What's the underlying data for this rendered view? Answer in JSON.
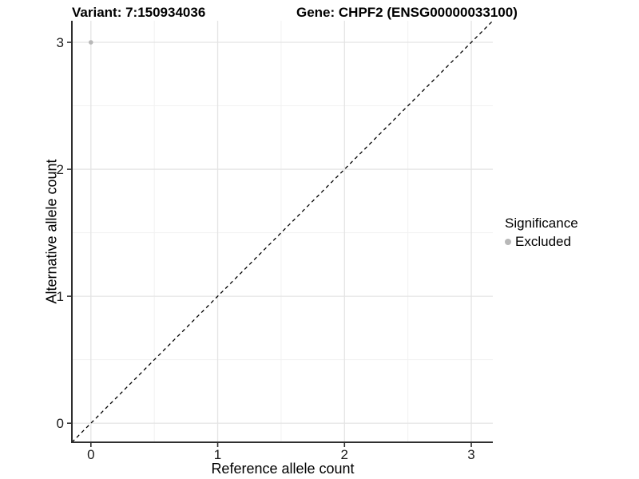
{
  "title": {
    "variant": "Variant: 7:150934036",
    "gene": "Gene: CHPF2 (ENSG00000033100)"
  },
  "axes": {
    "x_label": "Reference allele count",
    "y_label": "Alternative allele count"
  },
  "legend": {
    "title": "Significance",
    "items": [
      {
        "label": "Excluded",
        "color": "#b8b8b8",
        "marker": "circle"
      }
    ]
  },
  "chart_data": {
    "type": "scatter",
    "title": "Variant: 7:150934036   |   Gene: CHPF2 (ENSG00000033100)",
    "xlabel": "Reference allele count",
    "ylabel": "Alternative allele count",
    "xlim": [
      -0.15,
      3.17
    ],
    "ylim": [
      -0.15,
      3.17
    ],
    "x_ticks": [
      0,
      1,
      2,
      3
    ],
    "y_ticks": [
      0,
      1,
      2,
      3
    ],
    "x_minor_ticks": [
      0.5,
      1.5,
      2.5
    ],
    "y_minor_ticks": [
      0.5,
      1.5,
      2.5
    ],
    "grid": true,
    "legend_position": "right",
    "series": [
      {
        "name": "Excluded",
        "color": "#b8b8b8",
        "points": [
          {
            "x": 0,
            "y": 3
          }
        ]
      }
    ],
    "reference_line": {
      "type": "identity",
      "style": "dashed",
      "from": [
        -0.15,
        -0.15
      ],
      "to": [
        3.17,
        3.17
      ],
      "color": "#000000"
    },
    "colors": {
      "background": "#ffffff",
      "major_grid": "#e4e4e4",
      "minor_grid": "#f1f1f1",
      "axis_line": "#2f2f2f",
      "tick_label": "#1a1a1a"
    }
  }
}
